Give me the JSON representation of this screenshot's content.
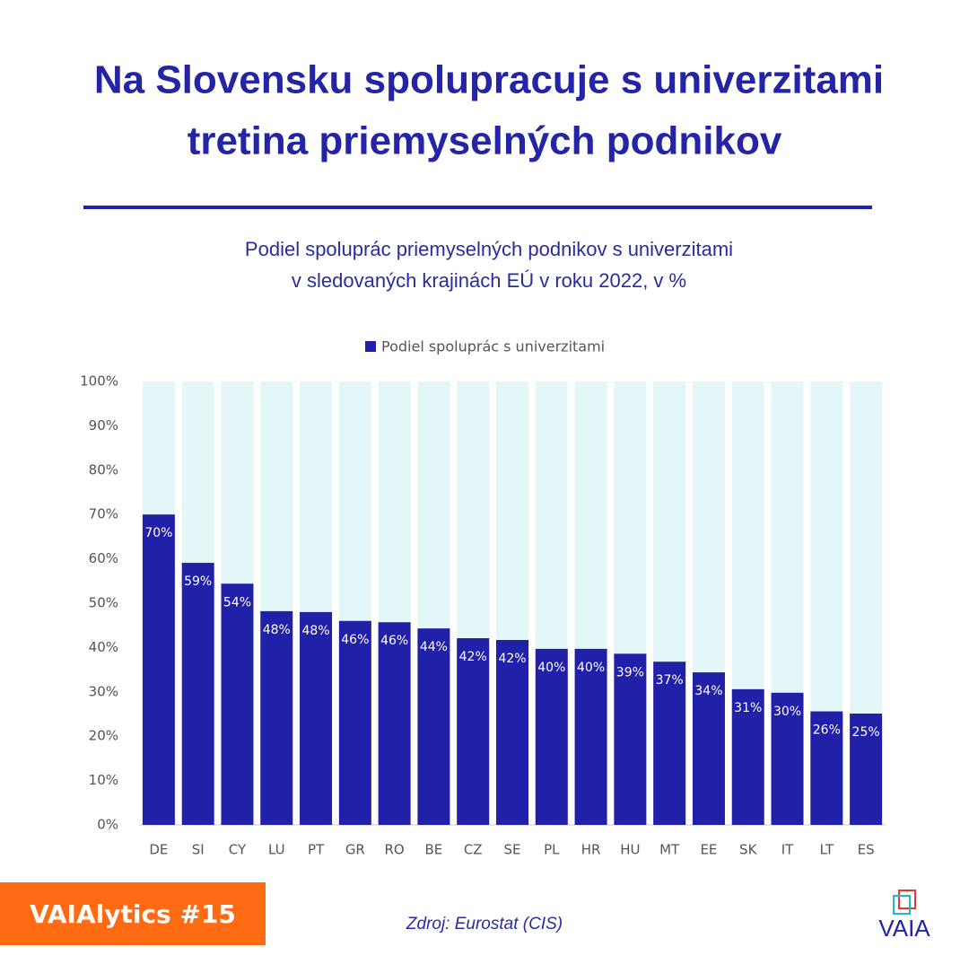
{
  "chart_data": {
    "type": "bar",
    "title": [
      "Na Slovensku spolupracuje s univerzitami",
      "tretina priemyselných podnikov"
    ],
    "subtitle": [
      "Podiel spoluprác priemyselných podnikov s univerzitami",
      "v sledovaných krajinách EÚ v roku 2022, v %"
    ],
    "categories": [
      "DE",
      "SI",
      "CY",
      "LU",
      "PT",
      "GR",
      "RO",
      "BE",
      "CZ",
      "SE",
      "PL",
      "HR",
      "HU",
      "MT",
      "EE",
      "SK",
      "IT",
      "LT",
      "ES"
    ],
    "series": [
      {
        "name": "Podiel spoluprác s univerzitami",
        "color": "#2020a8",
        "values": [
          70.0,
          59.1,
          54.4,
          48.2,
          48.0,
          46.0,
          45.7,
          44.3,
          42.1,
          41.7,
          39.7,
          39.7,
          38.6,
          36.8,
          34.4,
          30.6,
          29.8,
          25.6,
          25.1
        ],
        "value_labels": [
          "70%",
          "59%",
          "54%",
          "48%",
          "48%",
          "46%",
          "46%",
          "44%",
          "42%",
          "42%",
          "40%",
          "40%",
          "39%",
          "37%",
          "34%",
          "31%",
          "30%",
          "26%",
          "25%"
        ]
      }
    ],
    "ylim": [
      0,
      100
    ],
    "yticks": [
      {
        "value": 0,
        "label": "0%"
      },
      {
        "value": 10,
        "label": "10%"
      },
      {
        "value": 20,
        "label": "20%"
      },
      {
        "value": 30,
        "label": "30%"
      },
      {
        "value": 40,
        "label": "40%"
      },
      {
        "value": 50,
        "label": "50%"
      },
      {
        "value": 60,
        "label": "60%"
      },
      {
        "value": 70,
        "label": "70%"
      },
      {
        "value": 80,
        "label": "80%"
      },
      {
        "value": 90,
        "label": "90%"
      },
      {
        "value": 100,
        "label": "100%"
      }
    ],
    "background_bar_color": "#e3f7f8",
    "legend": "top",
    "source": "Zdroj: Eurostat (CIS)",
    "badge": "VAIAlytics #15",
    "logo": "VAIA"
  }
}
